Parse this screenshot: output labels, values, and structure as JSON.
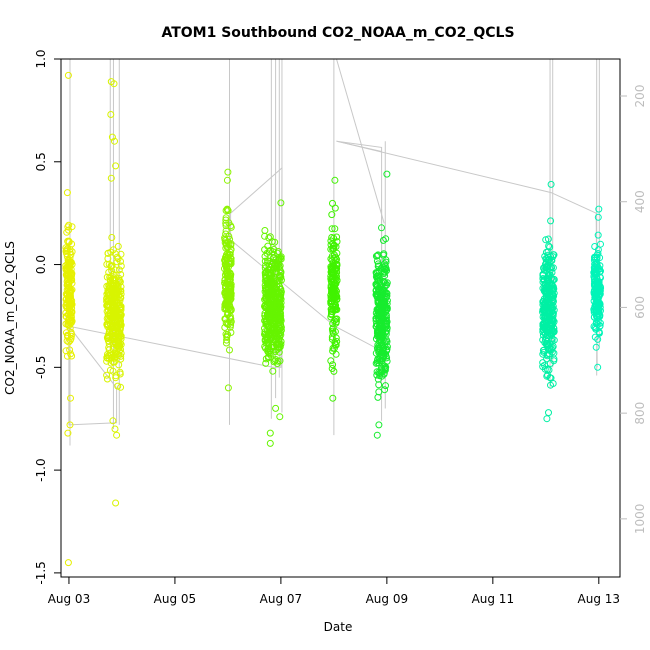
{
  "chart_data": {
    "type": "scatter",
    "title": "ATOM1 Southbound CO2_NOAA_m_CO2_QCLS",
    "xlabel": "Date",
    "ylabel": "CO2_NOAA_m_CO2_QCLS",
    "x_unit": "day of August",
    "xlim": [
      2.85,
      13.4
    ],
    "ylim": [
      -1.52,
      1.0
    ],
    "x_ticks": [
      {
        "value": 3,
        "label": "Aug 03"
      },
      {
        "value": 5,
        "label": "Aug 05"
      },
      {
        "value": 7,
        "label": "Aug 07"
      },
      {
        "value": 9,
        "label": "Aug 09"
      },
      {
        "value": 11,
        "label": "Aug 11"
      },
      {
        "value": 13,
        "label": "Aug 13"
      }
    ],
    "y_ticks": [
      {
        "value": 1.0,
        "label": "1.0"
      },
      {
        "value": 0.5,
        "label": "0.5"
      },
      {
        "value": 0.0,
        "label": "0.0"
      },
      {
        "value": -0.5,
        "label": "-0.5"
      },
      {
        "value": -1.0,
        "label": "-1.0"
      },
      {
        "value": -1.5,
        "label": "-1.5"
      }
    ],
    "right_axis": {
      "description": "altitude (pressure) axis, grey",
      "ylim": [
        1110,
        130
      ],
      "ticks": [
        {
          "value": 200,
          "label": "200"
        },
        {
          "value": 400,
          "label": "400"
        },
        {
          "value": 600,
          "label": "600"
        },
        {
          "value": 800,
          "label": "800"
        },
        {
          "value": 1000,
          "label": "1000"
        }
      ]
    },
    "flights": [
      {
        "x": 3.0,
        "width": 0.12,
        "color": "#e6f000",
        "lo": -0.58,
        "hi": 0.32,
        "n": 170,
        "outliers": [
          [
            2.99,
            0.92
          ],
          [
            2.98,
            -0.82
          ],
          [
            2.99,
            -1.45
          ],
          [
            3.02,
            -0.78
          ],
          [
            2.97,
            0.35
          ],
          [
            3.03,
            -0.65
          ]
        ]
      },
      {
        "x": 3.85,
        "width": 0.28,
        "color": "#d8f400",
        "lo": -0.7,
        "hi": 0.22,
        "n": 340,
        "outliers": [
          [
            3.8,
            0.89
          ],
          [
            3.85,
            0.88
          ],
          [
            3.79,
            0.73
          ],
          [
            3.82,
            0.62
          ],
          [
            3.86,
            0.6
          ],
          [
            3.8,
            0.42
          ],
          [
            3.88,
            0.48
          ],
          [
            3.9,
            -0.83
          ],
          [
            3.87,
            -0.8
          ],
          [
            3.88,
            -1.16
          ],
          [
            3.83,
            -0.76
          ]
        ]
      },
      {
        "x": 6.0,
        "width": 0.13,
        "color": "#8cf400",
        "lo": -0.55,
        "hi": 0.38,
        "n": 200,
        "outliers": [
          [
            6.0,
            0.45
          ],
          [
            6.01,
            -0.6
          ],
          [
            5.99,
            0.41
          ]
        ]
      },
      {
        "x": 6.85,
        "width": 0.32,
        "color": "#66f400",
        "lo": -0.65,
        "hi": 0.28,
        "n": 420,
        "outliers": [
          [
            6.8,
            -0.82
          ],
          [
            6.8,
            -0.87
          ],
          [
            6.98,
            -0.74
          ],
          [
            7.0,
            0.3
          ],
          [
            6.9,
            -0.7
          ]
        ]
      },
      {
        "x": 8.0,
        "width": 0.12,
        "color": "#40f200",
        "lo": -0.6,
        "hi": 0.35,
        "n": 170,
        "outliers": [
          [
            8.02,
            0.41
          ],
          [
            7.98,
            -0.65
          ],
          [
            8.0,
            -0.52
          ]
        ]
      },
      {
        "x": 8.9,
        "width": 0.22,
        "color": "#17ec2e",
        "lo": -0.75,
        "hi": 0.25,
        "n": 300,
        "outliers": [
          [
            9.0,
            0.44
          ],
          [
            8.82,
            -0.83
          ],
          [
            8.85,
            -0.78
          ]
        ]
      },
      {
        "x": 12.05,
        "width": 0.22,
        "color": "#00f0a4",
        "lo": -0.7,
        "hi": 0.28,
        "n": 300,
        "outliers": [
          [
            12.1,
            0.39
          ],
          [
            12.02,
            -0.75
          ],
          [
            12.05,
            -0.72
          ]
        ]
      },
      {
        "x": 12.97,
        "width": 0.13,
        "color": "#00f4b8",
        "lo": -0.47,
        "hi": 0.2,
        "n": 180,
        "outliers": [
          [
            13.0,
            0.27
          ],
          [
            12.99,
            0.23
          ],
          [
            12.98,
            -0.5
          ]
        ]
      }
    ],
    "track_lines": [
      [
        [
          3.0,
          -0.29
        ],
        [
          3.0,
          -0.78
        ],
        [
          3.9,
          -0.77
        ],
        [
          3.9,
          -0.6
        ],
        [
          3.0,
          -0.3
        ],
        [
          6.85,
          -0.5
        ],
        [
          7.0,
          -0.5
        ],
        [
          7.02,
          0.47
        ],
        [
          6.05,
          0.25
        ],
        [
          6.05,
          0.12
        ],
        [
          8.02,
          -0.3
        ],
        [
          8.9,
          -0.42
        ],
        [
          8.9,
          0.57
        ],
        [
          8.05,
          0.6
        ],
        [
          12.1,
          0.35
        ],
        [
          12.95,
          0.25
        ],
        [
          12.97,
          -0.5
        ]
      ],
      [
        [
          8.05,
          1.0
        ],
        [
          8.95,
          0.2
        ]
      ],
      [
        [
          8.05,
          0.6
        ],
        [
          8.9,
          0.55
        ]
      ]
    ],
    "profile_lines": [
      {
        "x": 3.02,
        "lo": -0.88,
        "hi": 1.0
      },
      {
        "x": 3.78,
        "lo": -0.42,
        "hi": 1.0
      },
      {
        "x": 3.84,
        "lo": -0.8,
        "hi": 1.0
      },
      {
        "x": 3.95,
        "lo": -0.78,
        "hi": 1.0
      },
      {
        "x": 6.03,
        "lo": -0.78,
        "hi": 1.0
      },
      {
        "x": 6.82,
        "lo": -0.75,
        "hi": 1.0
      },
      {
        "x": 6.9,
        "lo": -0.65,
        "hi": 1.0
      },
      {
        "x": 6.97,
        "lo": -0.55,
        "hi": 1.0
      },
      {
        "x": 7.02,
        "lo": -0.72,
        "hi": 1.0
      },
      {
        "x": 8.0,
        "lo": -0.83,
        "hi": 1.0
      },
      {
        "x": 8.9,
        "lo": -0.76,
        "hi": 0.27
      },
      {
        "x": 8.97,
        "lo": -0.7,
        "hi": 0.6
      },
      {
        "x": 12.08,
        "lo": -0.6,
        "hi": 1.0
      },
      {
        "x": 12.13,
        "lo": -0.5,
        "hi": 1.0
      },
      {
        "x": 12.96,
        "lo": -0.54,
        "hi": 1.0
      },
      {
        "x": 13.01,
        "lo": -0.4,
        "hi": 1.0
      }
    ]
  }
}
